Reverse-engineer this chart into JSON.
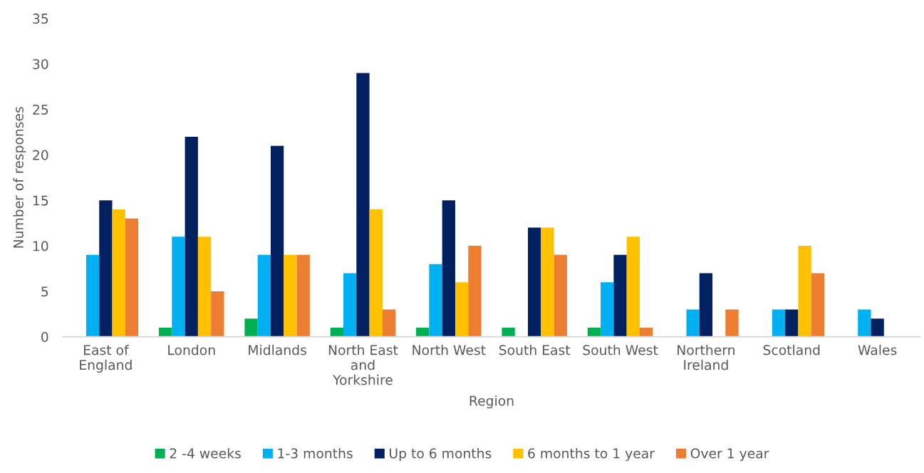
{
  "chart_data": {
    "type": "bar",
    "categories": [
      "East of\nEngland",
      "London",
      "Midlands",
      "North East\nand\nYorkshire",
      "North West",
      "South East",
      "South West",
      "Northern\nIreland",
      "Scotland",
      "Wales"
    ],
    "series": [
      {
        "name": "2 -4 weeks",
        "color": "#00b050",
        "values": [
          null,
          1,
          2,
          1,
          1,
          1,
          1,
          null,
          null,
          null
        ]
      },
      {
        "name": "1-3 months",
        "color": "#00b0f0",
        "values": [
          9,
          11,
          9,
          7,
          8,
          null,
          6,
          3,
          3,
          3
        ]
      },
      {
        "name": "Up to 6 months",
        "color": "#002060",
        "values": [
          15,
          22,
          21,
          29,
          15,
          12,
          9,
          7,
          3,
          2
        ]
      },
      {
        "name": "6 months to 1 year",
        "color": "#ffc000",
        "values": [
          14,
          11,
          9,
          14,
          6,
          12,
          11,
          null,
          10,
          null
        ]
      },
      {
        "name": "Over 1 year",
        "color": "#ed7d31",
        "values": [
          13,
          5,
          9,
          3,
          10,
          9,
          1,
          3,
          7,
          null
        ]
      }
    ],
    "xlabel": "Region",
    "ylabel": "Number of responses",
    "ylim": [
      0,
      35
    ],
    "yticks": [
      0,
      5,
      10,
      15,
      20,
      25,
      30,
      35
    ],
    "legend": "bottom"
  }
}
